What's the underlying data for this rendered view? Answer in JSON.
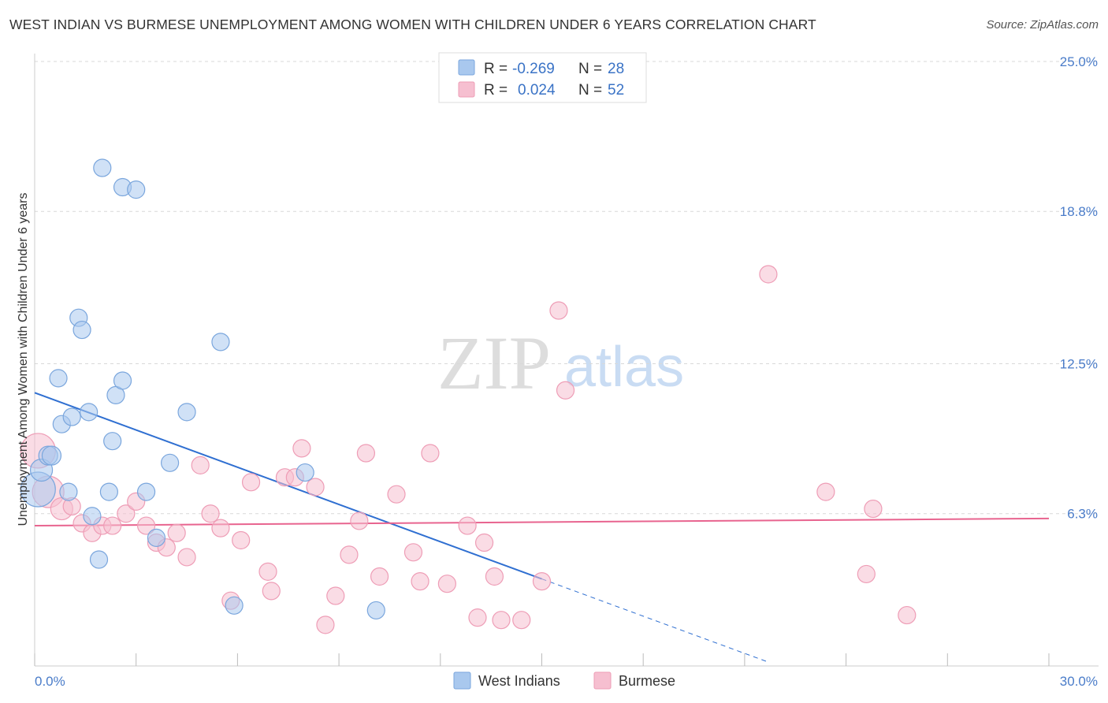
{
  "title": "WEST INDIAN VS BURMESE UNEMPLOYMENT AMONG WOMEN WITH CHILDREN UNDER 6 YEARS CORRELATION CHART",
  "source": "Source: ZipAtlas.com",
  "watermark": {
    "zip": "ZIP",
    "atlas": "atlas"
  },
  "colors": {
    "west_indian_fill": "#a9c8ee",
    "west_indian_stroke": "#7aa6dd",
    "west_indian_line": "#2f6fd1",
    "burmese_fill": "#f6bfd0",
    "burmese_stroke": "#ee9db6",
    "burmese_line": "#e8648f",
    "tick_text": "#4a7cc9",
    "grid": "#d9d9d9"
  },
  "legend": {
    "rows": [
      {
        "r_label": "R =",
        "r_value": "-0.269",
        "n_label": "N =",
        "n_value": "28"
      },
      {
        "r_label": "R =",
        "r_value": "0.024",
        "n_label": "N =",
        "n_value": "52"
      }
    ]
  },
  "chart_data": {
    "type": "scatter",
    "title": "WEST INDIAN VS BURMESE UNEMPLOYMENT AMONG WOMEN WITH CHILDREN UNDER 6 YEARS CORRELATION CHART",
    "xlabel": "",
    "ylabel": "Unemployment Among Women with Children Under 6 years",
    "xlim": [
      0,
      30
    ],
    "ylim": [
      0,
      25
    ],
    "x_tick_labels": [
      "0.0%",
      "30.0%"
    ],
    "y_ticks": [
      6.3,
      12.5,
      18.8,
      25.0
    ],
    "y_tick_labels": [
      "6.3%",
      "12.5%",
      "18.8%",
      "25.0%"
    ],
    "legend_position": "top-center",
    "series": [
      {
        "name": "West Indians",
        "r": -0.269,
        "n": 28,
        "trend": {
          "x0": 0,
          "y0": 11.3,
          "x1": 15,
          "y1": 3.6,
          "dash_to_x": 21.7
        },
        "points": [
          [
            0.1,
            7.3,
            22
          ],
          [
            0.2,
            8.1,
            14
          ],
          [
            0.4,
            8.7,
            12
          ],
          [
            0.5,
            8.7,
            12
          ],
          [
            0.7,
            11.9,
            11
          ],
          [
            0.8,
            10.0,
            11
          ],
          [
            1.0,
            7.2,
            11
          ],
          [
            1.1,
            10.3,
            11
          ],
          [
            1.3,
            14.4,
            11
          ],
          [
            1.4,
            13.9,
            11
          ],
          [
            1.6,
            10.5,
            11
          ],
          [
            1.7,
            6.2,
            11
          ],
          [
            1.9,
            4.4,
            11
          ],
          [
            2.0,
            20.6,
            11
          ],
          [
            2.2,
            7.2,
            11
          ],
          [
            2.3,
            9.3,
            11
          ],
          [
            2.4,
            11.2,
            11
          ],
          [
            2.6,
            11.8,
            11
          ],
          [
            2.6,
            19.8,
            11
          ],
          [
            3.0,
            19.7,
            11
          ],
          [
            3.3,
            7.2,
            11
          ],
          [
            3.6,
            5.3,
            11
          ],
          [
            4.0,
            8.4,
            11
          ],
          [
            4.5,
            10.5,
            11
          ],
          [
            5.5,
            13.4,
            11
          ],
          [
            5.9,
            2.5,
            11
          ],
          [
            8.0,
            8.0,
            11
          ],
          [
            10.1,
            2.3,
            11
          ]
        ]
      },
      {
        "name": "Burmese",
        "r": 0.024,
        "n": 52,
        "trend": {
          "x0": 0,
          "y0": 5.8,
          "x1": 30,
          "y1": 6.1
        },
        "points": [
          [
            0.1,
            8.9,
            22
          ],
          [
            0.4,
            7.2,
            20
          ],
          [
            0.8,
            6.5,
            14
          ],
          [
            1.1,
            6.6,
            11
          ],
          [
            1.4,
            5.9,
            11
          ],
          [
            1.7,
            5.5,
            11
          ],
          [
            2.0,
            5.8,
            11
          ],
          [
            2.3,
            5.8,
            11
          ],
          [
            2.7,
            6.3,
            11
          ],
          [
            3.0,
            6.8,
            11
          ],
          [
            3.3,
            5.8,
            11
          ],
          [
            3.6,
            5.1,
            11
          ],
          [
            3.9,
            4.9,
            11
          ],
          [
            4.2,
            5.5,
            11
          ],
          [
            4.5,
            4.5,
            11
          ],
          [
            4.9,
            8.3,
            11
          ],
          [
            5.2,
            6.3,
            11
          ],
          [
            5.5,
            5.7,
            11
          ],
          [
            5.8,
            2.7,
            11
          ],
          [
            6.1,
            5.2,
            11
          ],
          [
            6.4,
            7.6,
            11
          ],
          [
            6.9,
            3.9,
            11
          ],
          [
            7.0,
            3.1,
            11
          ],
          [
            7.4,
            7.8,
            11
          ],
          [
            7.7,
            7.8,
            11
          ],
          [
            7.9,
            9.0,
            11
          ],
          [
            8.3,
            7.4,
            11
          ],
          [
            8.6,
            1.7,
            11
          ],
          [
            8.9,
            2.9,
            11
          ],
          [
            9.3,
            4.6,
            11
          ],
          [
            9.6,
            6.0,
            11
          ],
          [
            9.8,
            8.8,
            11
          ],
          [
            10.2,
            3.7,
            11
          ],
          [
            10.7,
            7.1,
            11
          ],
          [
            11.2,
            4.7,
            11
          ],
          [
            11.4,
            3.5,
            11
          ],
          [
            11.7,
            8.8,
            11
          ],
          [
            12.2,
            3.4,
            11
          ],
          [
            12.8,
            5.8,
            11
          ],
          [
            13.1,
            2.0,
            11
          ],
          [
            13.3,
            5.1,
            11
          ],
          [
            13.6,
            3.7,
            11
          ],
          [
            13.8,
            1.9,
            11
          ],
          [
            14.4,
            1.9,
            11
          ],
          [
            15.0,
            3.5,
            11
          ],
          [
            15.5,
            14.7,
            11
          ],
          [
            15.7,
            11.4,
            11
          ],
          [
            21.7,
            16.2,
            11
          ],
          [
            23.4,
            7.2,
            11
          ],
          [
            24.6,
            3.8,
            11
          ],
          [
            24.8,
            6.5,
            11
          ],
          [
            25.8,
            2.1,
            11
          ]
        ]
      }
    ]
  },
  "bottom_legend": {
    "items": [
      {
        "label": "West Indians"
      },
      {
        "label": "Burmese"
      }
    ]
  }
}
